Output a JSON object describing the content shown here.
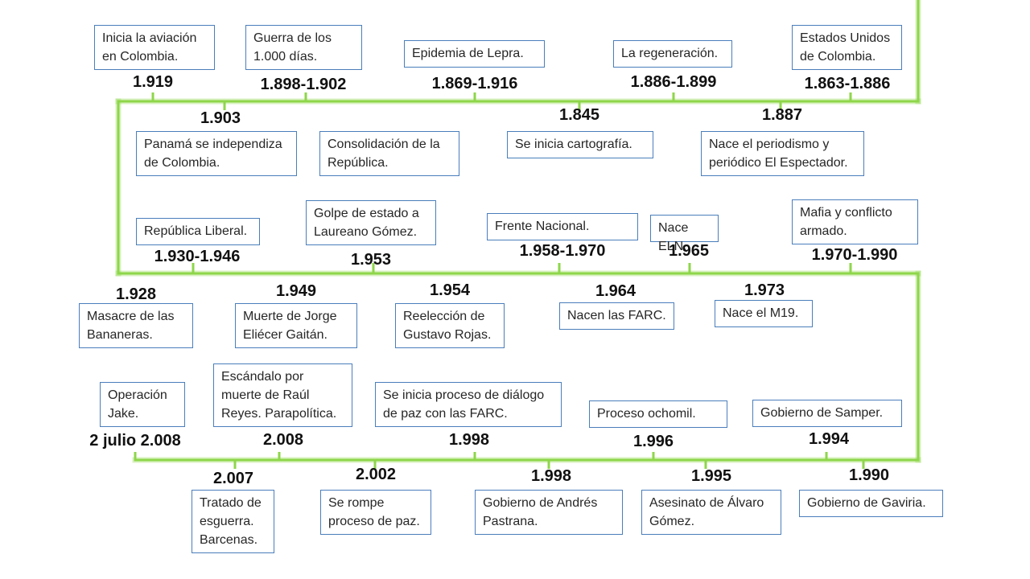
{
  "colors": {
    "timeline": "#8ed64a",
    "box_border": "#4a7ebb",
    "text": "#262626"
  },
  "events": [
    {
      "id": "inicia-aviacion",
      "year": "1.919",
      "label": "Inicia la aviación en Colombia."
    },
    {
      "id": "guerra-mil-dias",
      "year": "1.898-1.902",
      "label": "Guerra de los 1.000 días."
    },
    {
      "id": "epidemia-lepra",
      "year": "1.869-1.916",
      "label": "Epidemia de Lepra."
    },
    {
      "id": "regeneracion",
      "year": "1.886-1.899",
      "label": "La regeneración."
    },
    {
      "id": "estados-unidos",
      "year": "1.863-1.886",
      "label": "Estados Unidos de Colombia."
    },
    {
      "id": "panama",
      "year": "1.903",
      "label": "Panamá se independiza de Colombia."
    },
    {
      "id": "consolidacion",
      "year": "",
      "label": "Consolidación de la República."
    },
    {
      "id": "cartografia",
      "year": "1.845",
      "label": "Se inicia cartografía."
    },
    {
      "id": "periodismo",
      "year": "1.887",
      "label": "Nace el periodismo y periódico El Espectador."
    },
    {
      "id": "republica-liberal",
      "year": "1.930-1.946",
      "label": "República Liberal."
    },
    {
      "id": "golpe-estado",
      "year": "1.953",
      "label": "Golpe de estado a Laureano Gómez."
    },
    {
      "id": "frente-nacional",
      "year": "1.958-1.970",
      "label": "Frente Nacional."
    },
    {
      "id": "nace-eln",
      "year": "1.965",
      "label": "Nace ELN."
    },
    {
      "id": "mafia",
      "year": "1.970-1.990",
      "label": "Mafia y conflicto armado."
    },
    {
      "id": "bananeras",
      "year": "1.928",
      "label": "Masacre de las Bananeras."
    },
    {
      "id": "gaitan",
      "year": "1.949",
      "label": "Muerte de Jorge Eliécer Gaitán."
    },
    {
      "id": "rojas",
      "year": "1.954",
      "label": "Reelección de Gustavo Rojas."
    },
    {
      "id": "farc",
      "year": "1.964",
      "label": "Nacen las FARC."
    },
    {
      "id": "m19",
      "year": "1.973",
      "label": "Nace el M19."
    },
    {
      "id": "operacion-jake",
      "year": "2 julio 2.008",
      "label": "Operación Jake."
    },
    {
      "id": "raul-reyes",
      "year": "2.008",
      "label": "Escándalo por muerte de Raúl Reyes. Parapolítica."
    },
    {
      "id": "dialogo-farc",
      "year": "1.998",
      "label": "Se inicia proceso de diálogo de paz con las FARC."
    },
    {
      "id": "ochomil",
      "year": "1.996",
      "label": "Proceso ochomil."
    },
    {
      "id": "samper",
      "year": "1.994",
      "label": "Gobierno de Samper."
    },
    {
      "id": "esguerra",
      "year": "2.007",
      "label": "Tratado de esguerra. Barcenas."
    },
    {
      "id": "rompe-paz",
      "year": "2.002",
      "label": "Se rompe proceso de paz."
    },
    {
      "id": "pastrana",
      "year": "1.998",
      "label": "Gobierno de Andrés Pastrana."
    },
    {
      "id": "alvaro-gomez",
      "year": "1.995",
      "label": "Asesinato de Álvaro Gómez."
    },
    {
      "id": "gaviria",
      "year": "1.990",
      "label": "Gobierno de Gaviria."
    }
  ]
}
